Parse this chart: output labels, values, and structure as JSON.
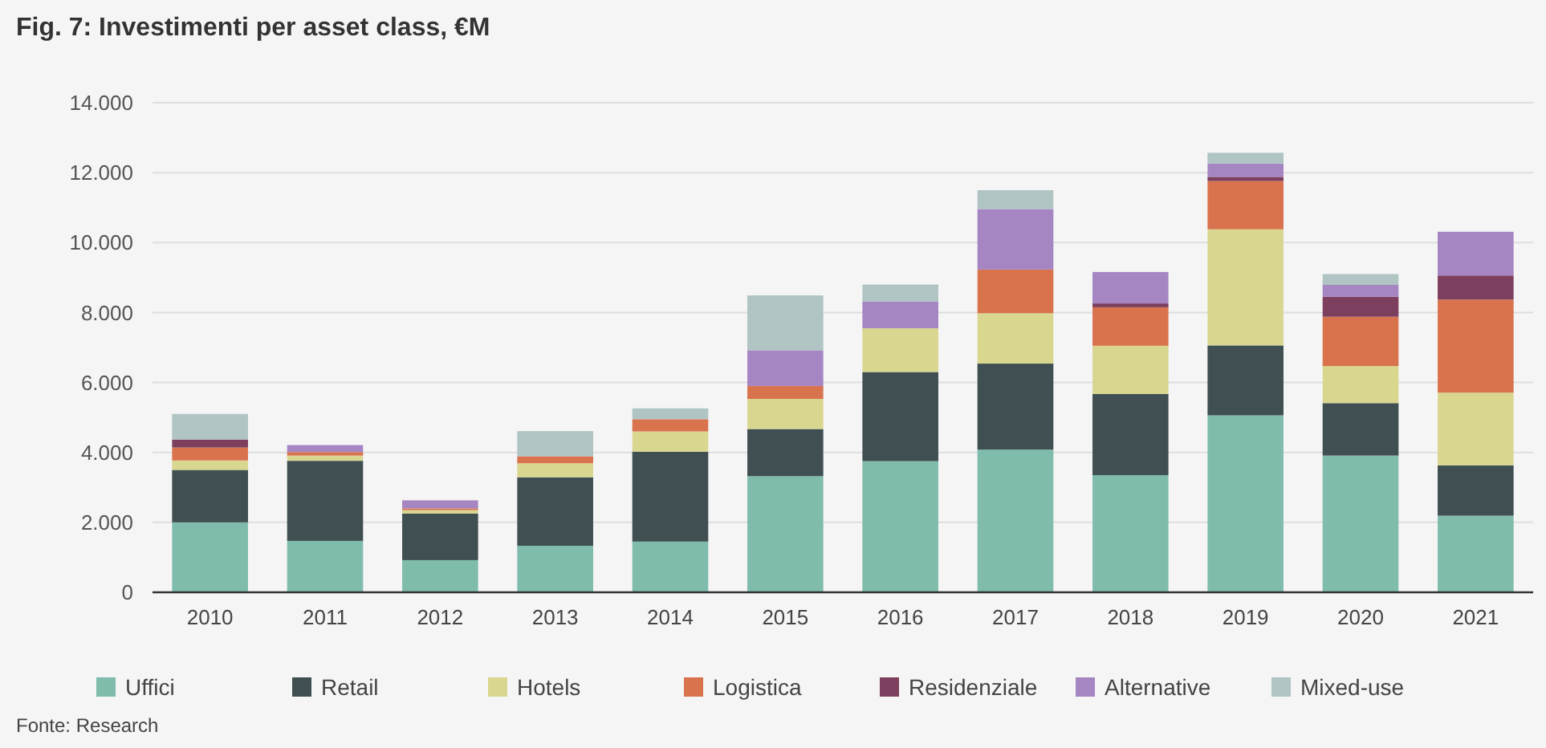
{
  "chart_data": {
    "type": "bar",
    "title": "Fig. 7: Investimenti per asset class, €M",
    "stacked": true,
    "grid": "y",
    "legend": "bottom",
    "categories": [
      "2010",
      "2011",
      "2012",
      "2013",
      "2014",
      "2015",
      "2016",
      "2017",
      "2018",
      "2019",
      "2020",
      "2021"
    ],
    "ylim": [
      0,
      14000
    ],
    "yticks": [
      {
        "value": 0,
        "label": "0"
      },
      {
        "value": 2000,
        "label": "2.000"
      },
      {
        "value": 4000,
        "label": "4.000"
      },
      {
        "value": 6000,
        "label": "6.000"
      },
      {
        "value": 8000,
        "label": "8.000"
      },
      {
        "value": 10000,
        "label": "10.000"
      },
      {
        "value": 12000,
        "label": "12.000"
      },
      {
        "value": 14000,
        "label": "14.000"
      }
    ],
    "series": [
      {
        "name": "Uffici",
        "color": "#7fbcac",
        "values": [
          2000,
          1470,
          920,
          1330,
          1450,
          3320,
          3750,
          4080,
          3350,
          5060,
          3910,
          2190
        ]
      },
      {
        "name": "Retail",
        "color": "#3f4f52",
        "values": [
          1500,
          2290,
          1330,
          1960,
          2570,
          1350,
          2550,
          2460,
          2320,
          2000,
          1500,
          1440
        ]
      },
      {
        "name": "Hotels",
        "color": "#d9d690",
        "values": [
          270,
          150,
          100,
          400,
          580,
          860,
          1250,
          1440,
          1380,
          3320,
          1060,
          2080
        ]
      },
      {
        "name": "Logistica",
        "color": "#d9734e",
        "values": [
          370,
          100,
          50,
          200,
          350,
          370,
          0,
          1250,
          1100,
          1380,
          1410,
          2660
        ]
      },
      {
        "name": "Residenziale",
        "color": "#7d3f5e",
        "values": [
          230,
          0,
          0,
          0,
          0,
          0,
          0,
          0,
          110,
          120,
          570,
          690
        ]
      },
      {
        "name": "Alternative",
        "color": "#a585c2",
        "values": [
          0,
          200,
          230,
          0,
          0,
          1020,
          760,
          1730,
          900,
          380,
          340,
          1250
        ]
      },
      {
        "name": "Mixed-use",
        "color": "#b0c4c4",
        "values": [
          730,
          0,
          0,
          720,
          310,
          1570,
          490,
          540,
          0,
          310,
          310,
          0
        ]
      }
    ],
    "annotations": [
      "Fonte: Research"
    ]
  }
}
